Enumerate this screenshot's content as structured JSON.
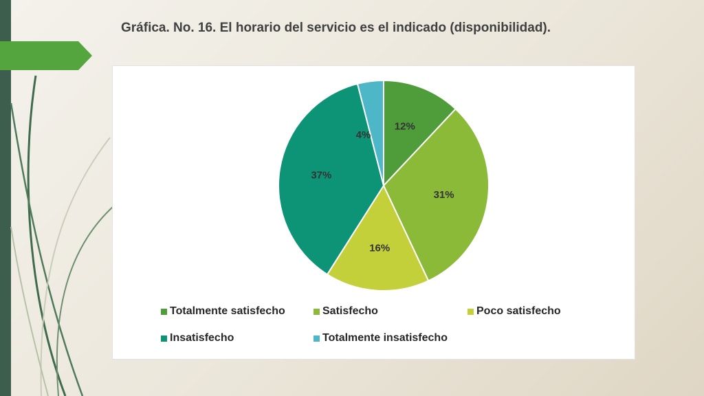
{
  "slide": {
    "title": "Gráfica. No. 16.  El horario del servicio es el indicado (disponibilidad).",
    "colors": {
      "sidebar": "#3d5e4d",
      "accent": "#55a53f",
      "background": "#efebe2"
    }
  },
  "chart_data": {
    "type": "pie",
    "title": "",
    "categories": [
      "Totalmente satisfecho",
      "Satisfecho",
      "Poco satisfecho",
      "Insatisfecho",
      "Totalmente insatisfecho"
    ],
    "values": [
      12,
      31,
      16,
      37,
      4
    ],
    "value_labels": [
      "12%",
      "31%",
      "16%",
      "37%",
      "4%"
    ],
    "colors": [
      "#4f9d3a",
      "#8aba38",
      "#c4d03a",
      "#0d9477",
      "#4db6c7"
    ],
    "legend_placement": "bottom",
    "start": "top, clockwise"
  }
}
